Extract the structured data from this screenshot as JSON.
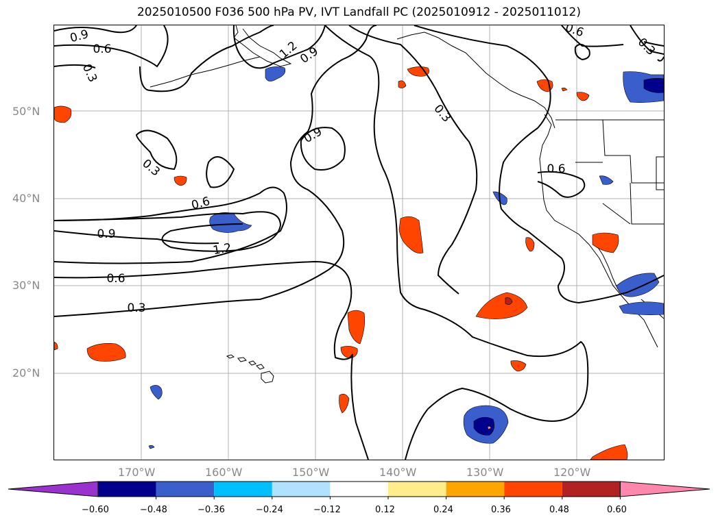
{
  "title": "2025010500 F036 500 hPa PV, IVT Landfall PC (2025010912 - 2025011012)",
  "lat_labels": [
    "50°N",
    "40°N",
    "30°N",
    "20°N"
  ],
  "lon_labels": [
    "170°W",
    "160°W",
    "150°W",
    "140°W",
    "130°W",
    "120°W"
  ],
  "contour_labels": [
    "0.9",
    "0.6",
    "0.3",
    "1.2",
    "0.9",
    "0.6",
    "0.3",
    "0.9",
    "0.3",
    "0.6",
    "0.6",
    "0.9",
    "1.2",
    "0.6",
    "0.3",
    "0.3"
  ],
  "colorbar": {
    "ticks": [
      "−0.60",
      "−0.48",
      "−0.36",
      "−0.24",
      "−0.12",
      "0.12",
      "0.24",
      "0.36",
      "0.48",
      "0.60"
    ],
    "colors": [
      "#9a32cd",
      "#00008b",
      "#3a5fcd",
      "#00bfff",
      "#b0e2ff",
      "#ffffff",
      "#ffec8b",
      "#ffa500",
      "#ff4500",
      "#b22222",
      "#ff86ac"
    ],
    "extend": "both"
  },
  "fill_colors": {
    "red": "#ff4500",
    "orange": "#ffa500",
    "yellow": "#ffec8b",
    "darkred": "#b22222",
    "blue": "#3a5fcd",
    "darkblue": "#00008b",
    "lightblue": "#00bfff",
    "pink": "#ff86ac"
  }
}
